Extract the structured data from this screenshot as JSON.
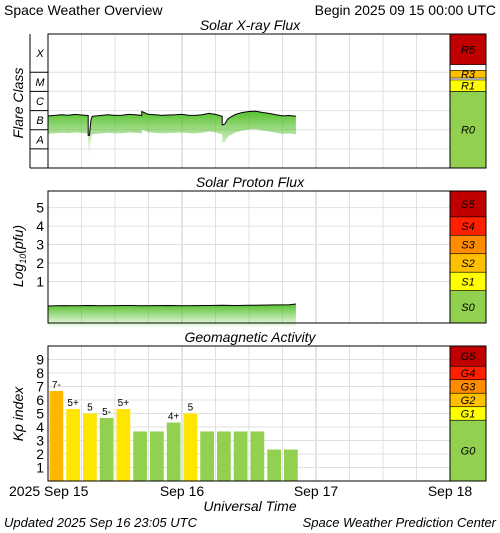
{
  "header": {
    "title": "Space Weather Overview",
    "begin": "Begin 2025 09 15 00:00 UTC"
  },
  "footer": {
    "updated": "Updated 2025 Sep 16 23:05 UTC",
    "center": "Space Weather Prediction Center"
  },
  "colors": {
    "frame": "#000000",
    "grid": "#e0e0e0",
    "line": "#000000",
    "fill_green": "#56c12c",
    "scale_green": "#92d050",
    "scale_yellow": "#ffff00",
    "scale_gold": "#ffc000",
    "scale_orange": "#ff8c00",
    "scale_red": "#ff2000",
    "scale_darkred": "#c00000",
    "bar_green": "#92d050",
    "bar_yellow": "#ffe600",
    "bar_orange": "#ffb800"
  },
  "x_axis": {
    "title": "Universal Time",
    "ticks": [
      {
        "day": 0,
        "label": "2025 Sep 15"
      },
      {
        "day": 1,
        "label": "Sep 16"
      },
      {
        "day": 2,
        "label": "Sep 17"
      },
      {
        "day": 3,
        "label": "Sep 18"
      }
    ]
  },
  "chart_data": [
    {
      "type": "line",
      "title": "Solar X-ray Flux",
      "ylabel": "Flare Class",
      "y_class_labels": [
        "X",
        "M",
        "C",
        "B",
        "A"
      ],
      "x_unit": "days since 2025 Sep 15 00:00 UTC",
      "xlim": [
        0,
        3
      ],
      "ylim_log10_wm2": [
        -9,
        -2
      ],
      "series": [
        {
          "x": [
            0,
            0.05,
            0.1,
            0.15,
            0.2,
            0.25,
            0.3,
            0.3,
            0.31,
            0.32,
            0.33,
            0.4,
            0.45,
            0.5,
            0.55,
            0.6,
            0.65,
            0.7,
            0.7,
            0.75,
            0.8,
            0.85,
            0.9,
            0.95,
            1.0,
            1.05,
            1.1,
            1.15,
            1.2,
            1.25,
            1.3,
            1.3,
            1.32,
            1.34,
            1.36,
            1.4,
            1.45,
            1.5,
            1.55,
            1.6,
            1.65,
            1.7,
            1.75,
            1.8,
            1.85
          ],
          "values": [
            -6.28,
            -6.25,
            -6.22,
            -6.24,
            -6.2,
            -6.23,
            -6.26,
            -7.3,
            -7.28,
            -6.5,
            -6.3,
            -6.25,
            -6.22,
            -6.25,
            -6.24,
            -6.2,
            -6.22,
            -6.25,
            -6.05,
            -6.2,
            -6.22,
            -6.25,
            -6.23,
            -6.22,
            -6.2,
            -6.24,
            -6.25,
            -6.22,
            -6.15,
            -6.2,
            -6.3,
            -6.75,
            -6.7,
            -6.45,
            -6.35,
            -6.2,
            -6.1,
            -6.05,
            -6.03,
            -6.1,
            -6.15,
            -6.22,
            -6.28,
            -6.26,
            -6.3
          ]
        }
      ],
      "scale": [
        {
          "label": "R5"
        },
        {
          "label": "R3"
        },
        {
          "label": "R1"
        },
        {
          "label": "R0"
        }
      ]
    },
    {
      "type": "line",
      "title": "Solar Proton Flux",
      "ylabel": "Log10(pfu)",
      "ylabel_main": "Log",
      "ylabel_sub": "10",
      "ylabel_tail": "(pfu)",
      "y_ticks": [
        "1",
        "2",
        "3",
        "4",
        "5"
      ],
      "ylim": [
        -1.25,
        5.9
      ],
      "x_unit": "days since 2025 Sep 15 00:00 UTC",
      "xlim": [
        0,
        3
      ],
      "series": [
        {
          "x": [
            0,
            0.1,
            0.2,
            0.3,
            0.4,
            0.5,
            0.6,
            0.7,
            0.8,
            0.9,
            1.0,
            1.1,
            1.2,
            1.3,
            1.4,
            1.5,
            1.6,
            1.7,
            1.8,
            1.85
          ],
          "values": [
            -0.33,
            -0.31,
            -0.32,
            -0.3,
            -0.32,
            -0.31,
            -0.3,
            -0.32,
            -0.31,
            -0.3,
            -0.32,
            -0.31,
            -0.3,
            -0.29,
            -0.3,
            -0.29,
            -0.28,
            -0.27,
            -0.26,
            -0.22
          ]
        }
      ],
      "scale": [
        {
          "label": "S5"
        },
        {
          "label": "S4"
        },
        {
          "label": "S3"
        },
        {
          "label": "S2"
        },
        {
          "label": "S1"
        },
        {
          "label": "S0"
        }
      ]
    },
    {
      "type": "bar",
      "title": "Geomagnetic Activity",
      "ylabel": "Kp index",
      "y_ticks": [
        "1",
        "2",
        "3",
        "4",
        "5",
        "6",
        "7",
        "8",
        "9"
      ],
      "ylim": [
        0,
        10
      ],
      "x_unit": "3-hour intervals from 2025 Sep 15 00:00 UTC",
      "values": [
        6.67,
        5.33,
        5.0,
        4.67,
        5.33,
        3.67,
        3.67,
        4.33,
        5.0,
        3.67,
        3.67,
        3.67,
        3.67,
        2.33,
        2.33
      ],
      "labels": [
        "7-",
        "5+",
        "5",
        "5-",
        "5+",
        "",
        "",
        "4+",
        "5",
        "",
        "",
        "",
        "",
        "",
        ""
      ],
      "scale": [
        {
          "label": "G5"
        },
        {
          "label": "G4"
        },
        {
          "label": "G3"
        },
        {
          "label": "G2"
        },
        {
          "label": "G1"
        },
        {
          "label": "G0"
        }
      ]
    }
  ]
}
